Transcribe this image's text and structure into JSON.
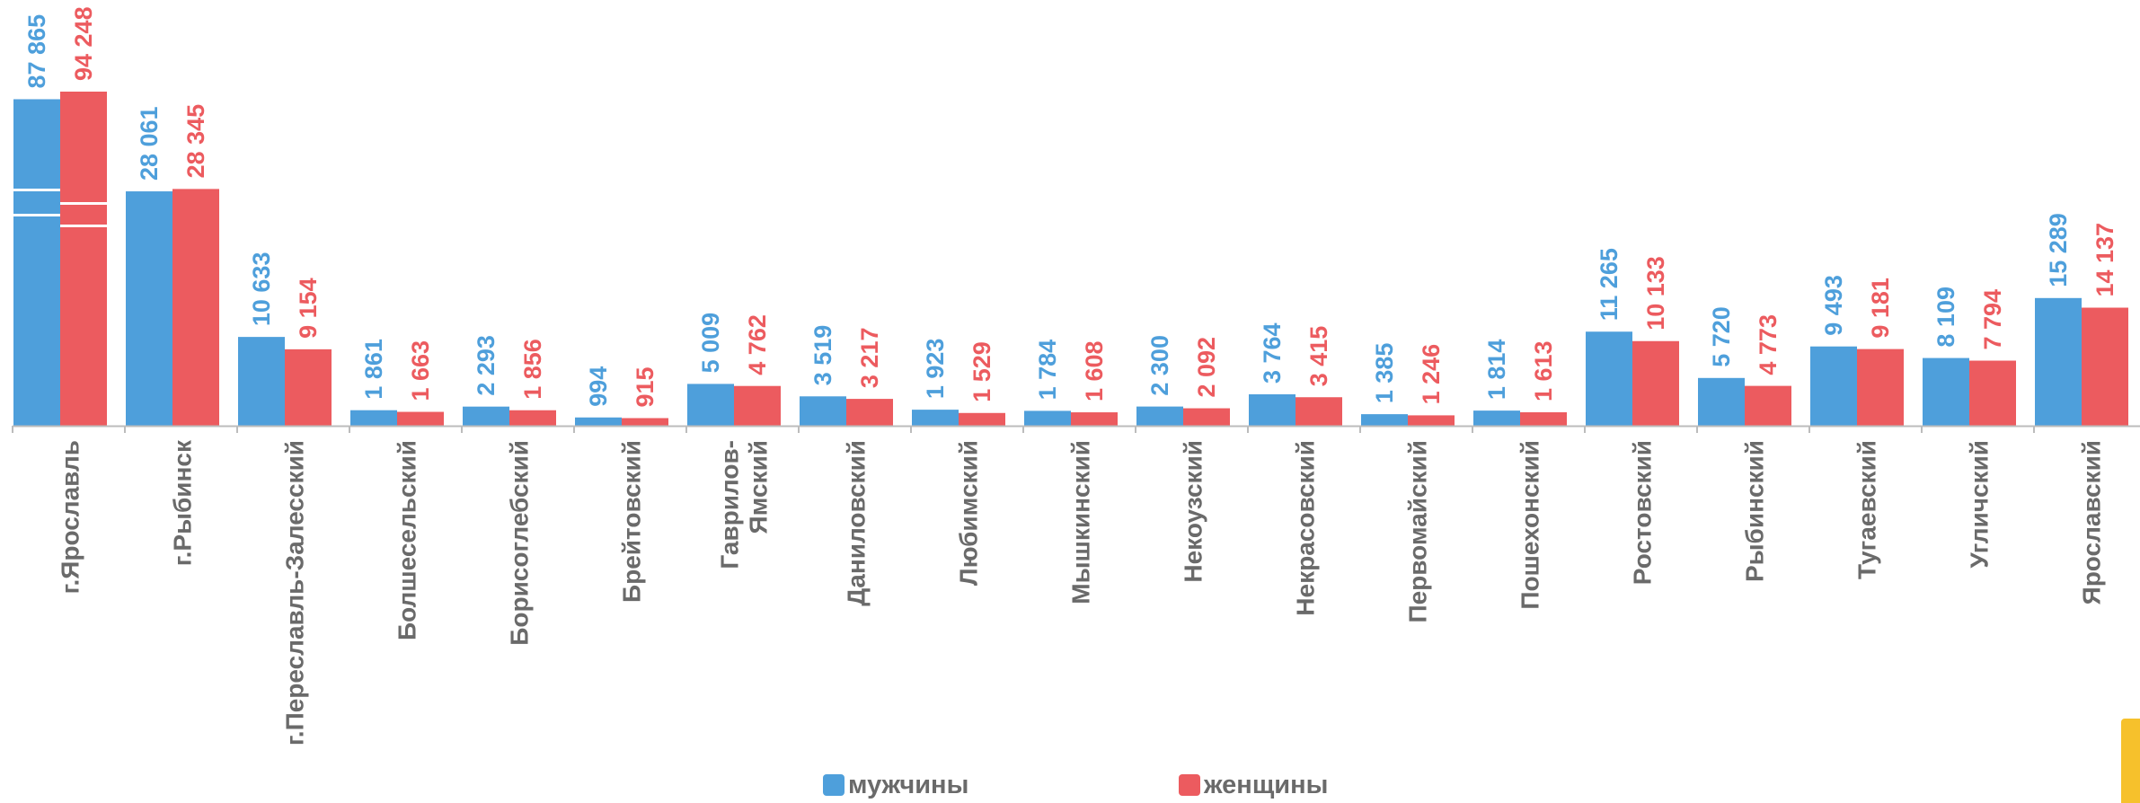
{
  "chart_data": {
    "type": "bar",
    "title": "",
    "xlabel": "",
    "ylabel": "",
    "ylim": [
      0,
      94248
    ],
    "axis_break": true,
    "grid": false,
    "legend_position": "bottom",
    "categories": [
      "г.Ярославль",
      "г.Рыбинск",
      "г.Переславль-Залесский",
      "Болшесельский",
      "Борисоглебский",
      "Брейтовский",
      "Гаврилов-Ямский",
      "Даниловский",
      "Любимский",
      "Мышкинский",
      "Некоузский",
      "Некрасовский",
      "Первомайский",
      "Пошехонский",
      "Ростовский",
      "Рыбинский",
      "Тугаевский",
      "Угличский",
      "Ярославский"
    ],
    "category_lines": [
      [
        "г.Ярославль"
      ],
      [
        "г.Рыбинск"
      ],
      [
        "г.Переславль-Залесский"
      ],
      [
        "Болшесельский"
      ],
      [
        "Борисоглебский"
      ],
      [
        "Брейтовский"
      ],
      [
        "Гаврилов-",
        "Ямский"
      ],
      [
        "Даниловский"
      ],
      [
        "Любимский"
      ],
      [
        "Мышкинский"
      ],
      [
        "Некоузский"
      ],
      [
        "Некрасовский"
      ],
      [
        "Первомайский"
      ],
      [
        "Пошехонский"
      ],
      [
        "Ростовский"
      ],
      [
        "Рыбинский"
      ],
      [
        "Тугаевский"
      ],
      [
        "Угличский"
      ],
      [
        "Ярославский"
      ]
    ],
    "series": [
      {
        "name": "мужчины",
        "color": "#4e9fdb",
        "values": [
          87865,
          28061,
          10633,
          1861,
          2293,
          994,
          5009,
          3519,
          1923,
          1784,
          2300,
          3764,
          1385,
          1814,
          11265,
          5720,
          9493,
          8109,
          15289
        ],
        "labels": [
          "87 865",
          "28 061",
          "10 633",
          "1 861",
          "2 293",
          "994",
          "5 009",
          "3 519",
          "1 923",
          "1 784",
          "2 300",
          "3 764",
          "1 385",
          "1 814",
          "11 265",
          "5 720",
          "9 493",
          "8 109",
          "15 289"
        ]
      },
      {
        "name": "женщины",
        "color": "#ec5b5f",
        "values": [
          94248,
          28345,
          9154,
          1663,
          1856,
          915,
          4762,
          3217,
          1529,
          1608,
          2092,
          3415,
          1246,
          1613,
          10133,
          4773,
          9181,
          7794,
          14137
        ],
        "labels": [
          "94 248",
          "28 345",
          "9 154",
          "1 663",
          "1 856",
          "915",
          "4 762",
          "3 217",
          "1 529",
          "1 608",
          "2 092",
          "3 415",
          "1 246",
          "1 613",
          "10 133",
          "4 773",
          "9 181",
          "7 794",
          "14 137"
        ]
      }
    ]
  },
  "colors": {
    "axis": "#bcbcbc",
    "label_text": "#6a6a6a",
    "corner_accent": "#f6c12c"
  }
}
